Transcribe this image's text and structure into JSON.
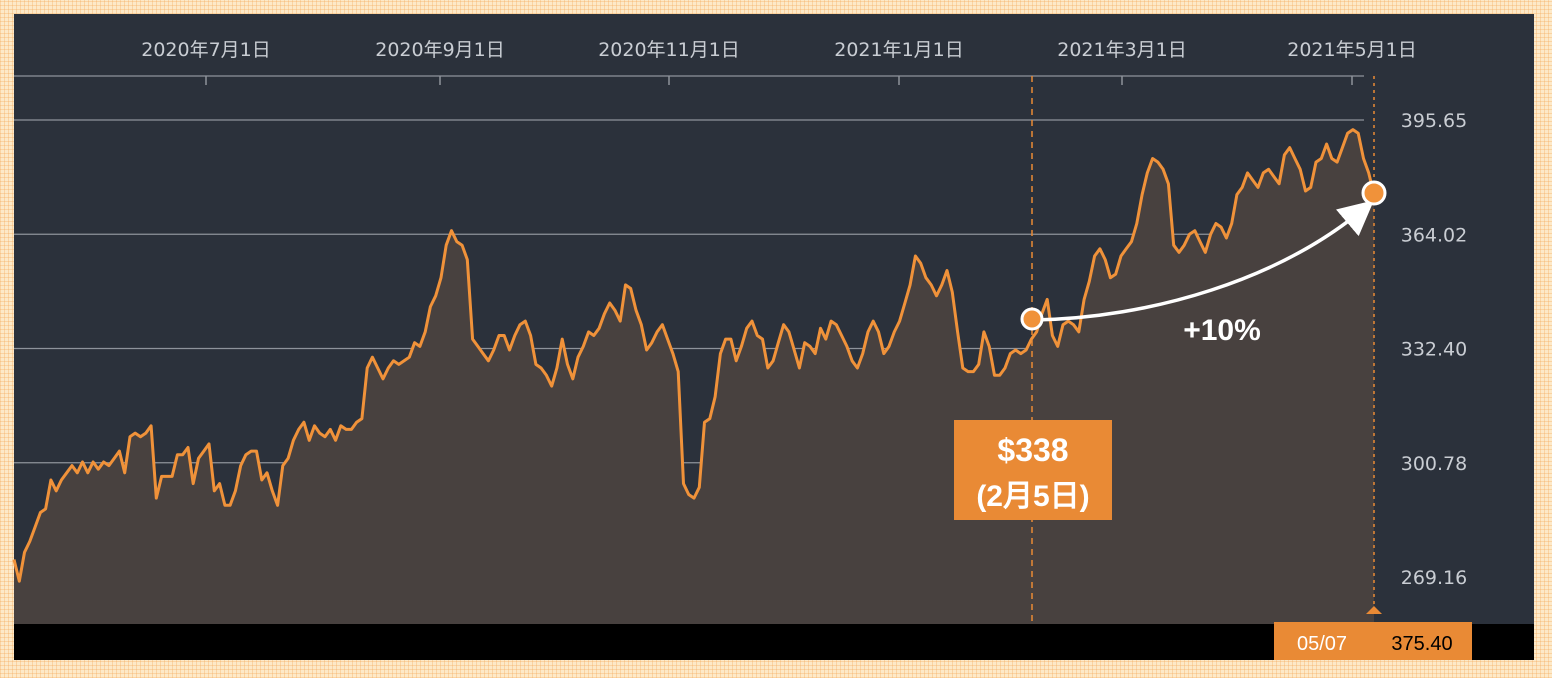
{
  "chart_data": {
    "type": "area",
    "x_ticks": [
      "2020年7月1日",
      "2020年9月1日",
      "2020年11月1日",
      "2021年1月1日",
      "2021年3月1日",
      "2021年5月1日"
    ],
    "y_ticks": [
      "395.65",
      "364.02",
      "332.40",
      "300.78",
      "269.16"
    ],
    "ylim": [
      257.0,
      408.0
    ],
    "grid": "horizontal",
    "colors": {
      "line": "#f0923a",
      "area": "#48413f",
      "background": "#2b313b",
      "label": "#e98a35"
    },
    "series": [
      {
        "values": [
          274,
          268,
          276,
          279,
          283,
          287,
          288,
          296,
          293,
          296,
          298,
          300,
          298,
          301,
          298,
          301,
          299,
          301,
          300,
          302,
          304,
          298,
          308,
          309,
          308,
          309,
          311,
          291,
          297,
          297,
          297,
          303,
          303,
          305,
          295,
          302,
          304,
          306,
          293,
          295,
          289,
          289,
          293,
          300,
          303,
          304,
          304,
          296,
          298,
          293,
          289,
          300,
          302,
          307,
          310,
          312,
          307,
          311,
          309,
          308,
          310,
          307,
          311,
          310,
          310,
          312,
          313,
          327,
          330,
          327,
          324,
          327,
          329,
          328,
          329,
          330,
          334,
          333,
          337,
          344,
          347,
          352,
          361,
          365,
          362,
          361,
          357,
          335,
          333,
          331,
          329,
          332,
          336,
          336,
          332,
          336,
          339,
          340,
          336,
          328,
          327,
          325,
          322,
          327,
          335,
          328,
          324,
          330,
          333,
          337,
          336,
          338,
          342,
          345,
          343,
          340,
          350,
          349,
          343,
          339,
          332,
          334,
          337,
          339,
          335,
          331,
          326,
          295,
          292,
          291,
          294,
          312,
          313,
          319,
          331,
          335,
          335,
          329,
          333,
          338,
          340,
          336,
          335,
          327,
          329,
          334,
          339,
          337,
          332,
          327,
          334,
          333,
          331,
          338,
          335,
          340,
          339,
          336,
          333,
          329,
          327,
          331,
          337,
          340,
          337,
          331,
          333,
          337,
          340,
          345,
          350,
          358,
          356,
          352,
          350,
          347,
          350,
          354,
          348,
          337,
          327,
          326,
          326,
          328,
          337,
          333,
          325,
          325,
          327,
          331,
          332,
          331,
          332,
          335,
          337,
          342,
          346,
          336,
          333,
          339,
          340,
          339,
          337,
          346,
          351,
          358,
          360,
          357,
          352,
          353,
          358,
          360,
          362,
          367,
          375,
          381,
          385,
          384,
          382,
          378,
          361,
          359,
          361,
          364,
          365,
          362,
          359,
          364,
          367,
          366,
          363,
          367,
          375,
          377,
          381,
          379,
          377,
          381,
          382,
          380,
          378,
          386,
          388,
          385,
          382,
          376,
          377,
          384,
          385,
          389,
          385,
          384,
          388,
          392,
          393,
          392,
          385,
          381,
          375
        ]
      }
    ],
    "callout_price": "$338",
    "callout_date": "(2月5日)",
    "change_label": "+10%",
    "readout_date": "05/07",
    "readout_value": "375.40"
  }
}
